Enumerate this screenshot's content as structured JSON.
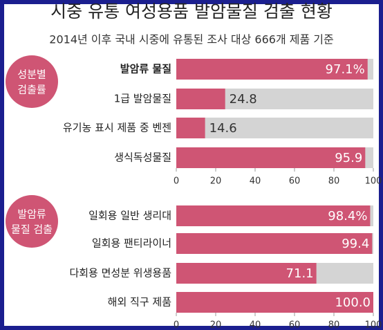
{
  "title": "시중 유통 여성용품 발암물질 검출 현황",
  "subtitle": "2014년 이후 국내 시중에 유통된 조사 대상 666개 제품 기준",
  "chart_data": [
    {
      "type": "bar",
      "group_label": [
        "성분별",
        "검출률"
      ],
      "categories": [
        "발암류 물질",
        "1급 발암물질",
        "유기농 표시 제품 중 벤젠",
        "생식독성물질"
      ],
      "values": [
        97.1,
        24.8,
        14.6,
        95.9
      ],
      "value_labels": [
        "97.1%",
        "24.8",
        "14.6",
        "95.9"
      ],
      "color": "#cf5574",
      "track_color": "#d4d4d4",
      "xlim": [
        0,
        100
      ],
      "xticks": [
        0,
        20,
        40,
        60,
        80,
        100
      ]
    },
    {
      "type": "bar",
      "group_label": [
        "발암류",
        "물질 검출"
      ],
      "categories": [
        "일회용 일반 생리대",
        "일회용 팬티라이너",
        "다회용 면성분 위생용품",
        "해외 직구 제품"
      ],
      "values": [
        98.4,
        99.4,
        71.1,
        100.0
      ],
      "value_labels": [
        "98.4%",
        "99.4",
        "71.1",
        "100.0"
      ],
      "color": "#cf5574",
      "track_color": "#d4d4d4",
      "xlim": [
        0,
        100
      ],
      "xticks": [
        0,
        20,
        40,
        60,
        80,
        100
      ]
    }
  ]
}
